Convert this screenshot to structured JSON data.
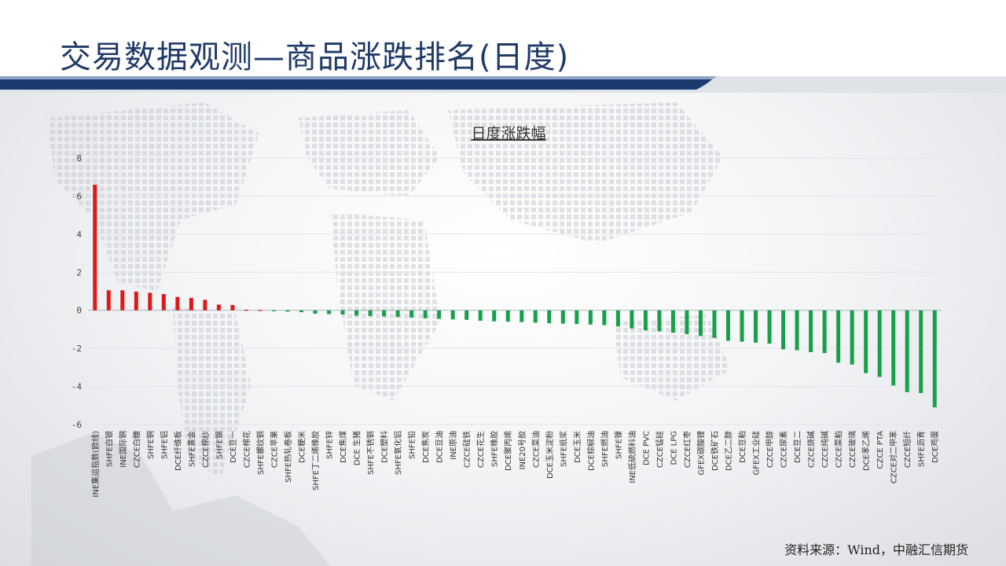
{
  "header": {
    "title": "交易数据观测—商品涨跌排名(日度)"
  },
  "source": "资料来源：Wind，中融汇信期货",
  "colors": {
    "up": "#e01818",
    "down": "#17a04a",
    "title": "#1f3a68",
    "band": "#1b3a6e"
  },
  "chart_data": {
    "type": "bar",
    "title": "日度涨跌幅",
    "ylim": [
      -6,
      8
    ],
    "yticks": [
      -6,
      -4,
      -2,
      0,
      2,
      4,
      6,
      8
    ],
    "grid": true,
    "categories": [
      "INE集运指数(欧线)",
      "SHFE白银",
      "INE国际铜",
      "CZCE白糖",
      "SHFE铜",
      "SHFE铝",
      "DCE纤维板",
      "SHFE黄金",
      "CZCE棉纱",
      "SHFE锡",
      "DCE豆一",
      "CZCE棉花",
      "SHFE螺纹钢",
      "CZCE苹果",
      "SHFE热轧卷板",
      "DCE粳米",
      "SHFE丁二烯橡胶",
      "SHFE锌",
      "DCE焦煤",
      "DCE 生猪",
      "SHFE不锈钢",
      "DCE塑料",
      "SHFE氧化铝",
      "SHFE铅",
      "DCE焦炭",
      "DCE豆油",
      "INE原油",
      "CZCE硅铁",
      "CZCE花生",
      "SHFE橡胶",
      "DCE聚丙烯",
      "INE20号胶",
      "CZCE菜油",
      "DCE玉米淀粉",
      "SHFE纸浆",
      "DCE玉米",
      "DCE棕榈油",
      "SHFE燃油",
      "SHFE镍",
      "INE低硫燃料油",
      "DCE PVC",
      "CZCE锰硅",
      "DCE LPG",
      "CZCE红枣",
      "GFEX碳酸锂",
      "DCE铁矿石",
      "DCE乙二醇",
      "DCE豆粕",
      "GFEX工业硅",
      "CZCE甲醇",
      "CZCE尿素",
      "DCE豆二",
      "CZCE烧碱",
      "CZCE纯碱",
      "CZCE菜粕",
      "CZCE玻璃",
      "DCE苯乙烯",
      "CZCE PTA",
      "CZCE对二甲苯",
      "CZCE短纤",
      "SHFE沥青",
      "DCE鸡蛋"
    ],
    "values": [
      6.6,
      1.05,
      1.05,
      0.98,
      0.92,
      0.85,
      0.7,
      0.65,
      0.55,
      0.3,
      0.28,
      0.03,
      0.02,
      -0.05,
      -0.07,
      -0.1,
      -0.18,
      -0.2,
      -0.22,
      -0.28,
      -0.3,
      -0.32,
      -0.35,
      -0.38,
      -0.42,
      -0.45,
      -0.48,
      -0.5,
      -0.55,
      -0.58,
      -0.6,
      -0.62,
      -0.65,
      -0.68,
      -0.7,
      -0.72,
      -0.75,
      -0.78,
      -0.85,
      -0.95,
      -1.05,
      -1.1,
      -1.18,
      -1.25,
      -1.35,
      -1.45,
      -1.6,
      -1.65,
      -1.7,
      -1.75,
      -2.05,
      -2.1,
      -2.2,
      -2.25,
      -2.75,
      -2.85,
      -3.3,
      -3.5,
      -3.95,
      -4.3,
      -4.35,
      -5.1
    ]
  }
}
